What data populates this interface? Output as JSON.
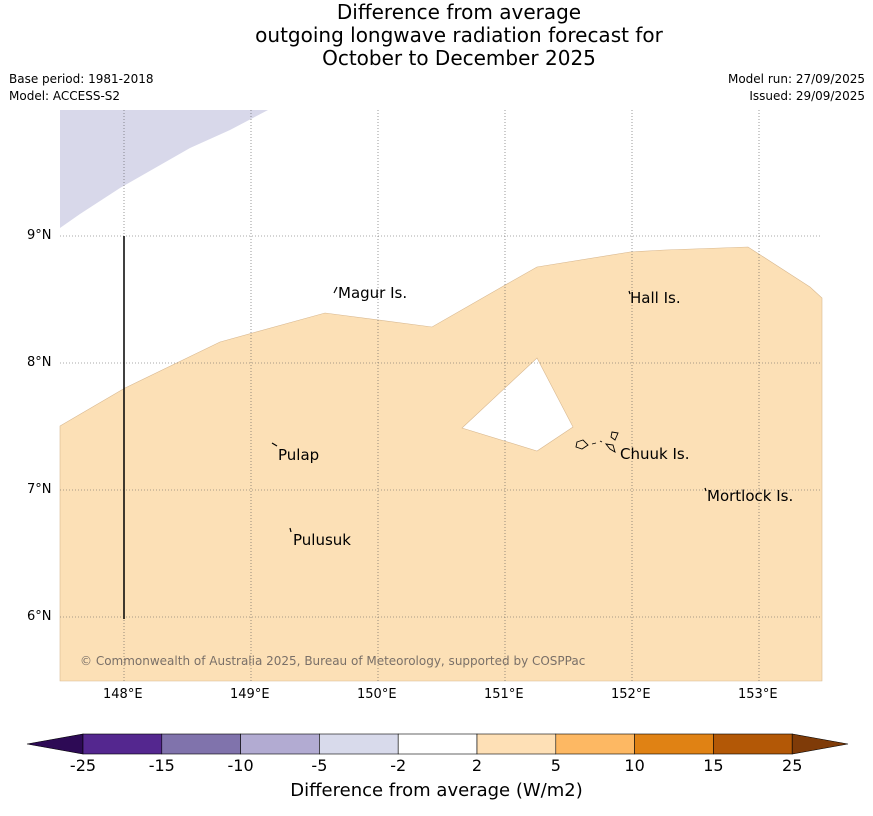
{
  "title": {
    "line1": "Difference from average",
    "line2": "outgoing longwave radiation forecast for",
    "line3": "October to December 2025"
  },
  "meta": {
    "base_period": "Base period: 1981-2018",
    "model": "Model: ACCESS-S2",
    "model_run": "Model run: 27/09/2025",
    "issued": "Issued: 29/09/2025"
  },
  "map": {
    "latitude_labels": [
      "9°N",
      "8°N",
      "7°N",
      "6°N"
    ],
    "longitude_labels": [
      "148°E",
      "149°E",
      "150°E",
      "151°E",
      "152°E",
      "153°E"
    ],
    "places": [
      "Magur Is.",
      "Hall Is.",
      "Pulap",
      "Chuuk Is.",
      "Mortlock Is.",
      "Pulusuk"
    ],
    "copyright": "© Commonwealth of Australia 2025, Bureau of Meteorology, supported by COSPPac",
    "region_colors": {
      "light_purple": "#d8d8ea",
      "light_orange": "#fce0b6",
      "white": "#ffffff"
    }
  },
  "colorbar": {
    "label": "Difference from average (W/m2)",
    "ticks": [
      "-25",
      "-15",
      "-10",
      "-5",
      "-2",
      "2",
      "5",
      "10",
      "15",
      "25"
    ],
    "colors": [
      "#2d0a55",
      "#54278f",
      "#8073ac",
      "#b2abd2",
      "#d8daeb",
      "#ffffff",
      "#fee0b6",
      "#fdb863",
      "#e08214",
      "#b35806",
      "#7f3b08"
    ]
  }
}
